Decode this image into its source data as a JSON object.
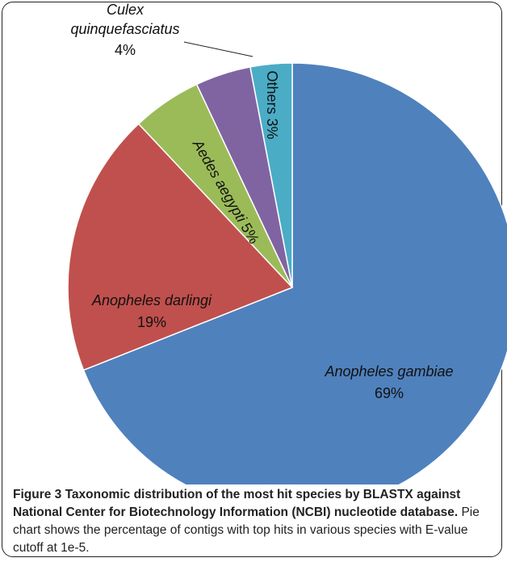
{
  "chart_data": {
    "type": "pie",
    "categories": [
      "Anopheles gambiae",
      "Anopheles darlingi",
      "Aedes aegypti",
      "Culex quinquefasciatus",
      "Others"
    ],
    "values": [
      69,
      19,
      5,
      4,
      3
    ],
    "value_labels": [
      "69%",
      "19%",
      "5%",
      "4%",
      "3%"
    ],
    "colors": [
      "#4f81bd",
      "#c0504d",
      "#9bbb59",
      "#8064a2",
      "#4bacc6"
    ]
  },
  "caption": {
    "title": "Figure 3 Taxonomic distribution of the most hit species by BLASTX against National Center for Biotechnology Information (NCBI) nucleotide database.",
    "text": "Pie chart shows the percentage of contigs with top hits in various species with E-value cutoff at 1e-5."
  }
}
